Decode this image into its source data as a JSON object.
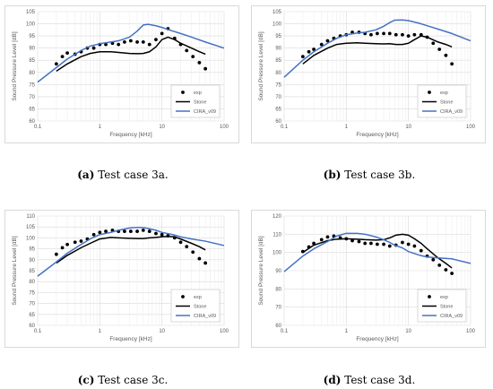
{
  "chart_data": [
    {
      "id": "a",
      "type": "line",
      "caption_label": "(a)",
      "caption_text": "Test case 3a.",
      "xlabel": "Frequency [kHz]",
      "ylabel": "Sound Pressure Level [dB]",
      "xscale": "log",
      "xlim": [
        0.1,
        100
      ],
      "ylim": [
        60,
        105
      ],
      "yticks": [
        60,
        65,
        70,
        75,
        80,
        85,
        90,
        95,
        100,
        105
      ],
      "xticks": [
        0.1,
        1,
        10,
        100
      ],
      "xtick_labels": [
        "0.1",
        "1",
        "10",
        "100"
      ],
      "legend_position": "bottom-right",
      "series": [
        {
          "name": "exp",
          "style": "markers",
          "color": "#000000",
          "x": [
            0.2,
            0.25,
            0.3,
            0.4,
            0.5,
            0.63,
            0.8,
            1.0,
            1.25,
            1.6,
            2.0,
            2.5,
            3.15,
            4.0,
            5.0,
            6.3,
            8.0,
            10.0,
            12.5,
            16.0,
            20.0,
            25.0,
            31.5,
            40.0,
            50.0
          ],
          "y": [
            83.5,
            86.5,
            88,
            87.5,
            88.5,
            90,
            90,
            91.5,
            91.5,
            92,
            91.5,
            92.5,
            93,
            92.5,
            92.5,
            91.5,
            93.5,
            96,
            98,
            94,
            91.5,
            89,
            86.5,
            84,
            81.5
          ]
        },
        {
          "name": "Stone",
          "style": "line",
          "color": "#000000",
          "x": [
            0.2,
            0.3,
            0.5,
            0.7,
            1.0,
            1.5,
            2.0,
            3.0,
            4.0,
            5.0,
            6.3,
            8.0,
            10.0,
            12.5,
            16.0,
            20.0,
            30.0,
            40.0,
            50.0
          ],
          "y": [
            80.5,
            83.5,
            86.5,
            87.8,
            88.5,
            88.5,
            88.2,
            87.8,
            87.7,
            87.8,
            88.5,
            90.5,
            93.5,
            94.5,
            93.5,
            92,
            90,
            88.5,
            87.5
          ]
        },
        {
          "name": "CIRA_v09",
          "style": "line",
          "color": "#4472C4",
          "x": [
            0.1,
            0.2,
            0.3,
            0.5,
            0.7,
            1.0,
            1.5,
            2.0,
            3.0,
            4.0,
            5.0,
            6.0,
            8.0,
            10.0,
            15.0,
            20.0,
            30.0,
            50.0,
            100.0
          ],
          "y": [
            76,
            82,
            85.5,
            89,
            90.8,
            91.8,
            92.5,
            93,
            94.5,
            97,
            99.5,
            99.8,
            99.2,
            98.5,
            97,
            96,
            94.5,
            92.5,
            90
          ]
        }
      ]
    },
    {
      "id": "b",
      "type": "line",
      "caption_label": "(b)",
      "caption_text": "Test case 3b.",
      "xlabel": "Frequency [kHz]",
      "ylabel": "Sound Pressure Level [dB]",
      "xscale": "log",
      "xlim": [
        0.1,
        100
      ],
      "ylim": [
        60,
        105
      ],
      "yticks": [
        60,
        65,
        70,
        75,
        80,
        85,
        90,
        95,
        100,
        105
      ],
      "xticks": [
        0.1,
        1,
        10,
        100
      ],
      "xtick_labels": [
        "0.1",
        "1",
        "10",
        "100"
      ],
      "legend_position": "bottom-right",
      "series": [
        {
          "name": "exp",
          "style": "markers",
          "color": "#000000",
          "x": [
            0.2,
            0.25,
            0.3,
            0.4,
            0.5,
            0.63,
            0.8,
            1.0,
            1.25,
            1.6,
            2.0,
            2.5,
            3.15,
            4.0,
            5.0,
            6.3,
            8.0,
            10.0,
            12.5,
            16.0,
            20.0,
            25.0,
            31.5,
            40.0,
            50.0
          ],
          "y": [
            86.5,
            88.5,
            89.5,
            91.5,
            93,
            94,
            95,
            95.5,
            96.5,
            96.5,
            96,
            95.5,
            96,
            96,
            96,
            95.5,
            95.5,
            95,
            95.5,
            95.5,
            94.5,
            92,
            89.5,
            87,
            83.5
          ]
        },
        {
          "name": "Stone",
          "style": "line",
          "color": "#000000",
          "x": [
            0.2,
            0.3,
            0.5,
            0.7,
            1.0,
            1.5,
            2.0,
            3.0,
            4.0,
            5.0,
            6.3,
            8.0,
            10.0,
            12.5,
            16.0,
            20.0,
            30.0,
            40.0,
            50.0
          ],
          "y": [
            83.5,
            87,
            90,
            91.5,
            92,
            92.2,
            92,
            91.8,
            91.7,
            91.8,
            91.5,
            91.5,
            92,
            93.5,
            95,
            94.5,
            92.5,
            91.5,
            90.5
          ]
        },
        {
          "name": "CIRA_v09",
          "style": "line",
          "color": "#4472C4",
          "x": [
            0.1,
            0.2,
            0.3,
            0.5,
            0.7,
            1.0,
            1.5,
            2.0,
            3.0,
            4.0,
            5.0,
            6.0,
            8.0,
            10.0,
            15.0,
            20.0,
            30.0,
            50.0,
            100.0
          ],
          "y": [
            78,
            85,
            88.5,
            92,
            94,
            95.5,
            96.2,
            96.5,
            97.5,
            99,
            100.5,
            101.5,
            101.6,
            101.3,
            100.2,
            99.2,
            97.8,
            96,
            93
          ]
        }
      ]
    },
    {
      "id": "c",
      "type": "line",
      "caption_label": "(c)",
      "caption_text": "Test case 3c.",
      "xlabel": "Frequency [kHz]",
      "ylabel": "Sound Pressure Level [dB]",
      "xscale": "log",
      "xlim": [
        0.1,
        100
      ],
      "ylim": [
        60,
        110
      ],
      "yticks": [
        60,
        65,
        70,
        75,
        80,
        85,
        90,
        95,
        100,
        105,
        110
      ],
      "xticks": [
        0.1,
        1,
        10,
        100
      ],
      "xtick_labels": [
        "0.1",
        "1",
        "10",
        "100"
      ],
      "legend_position": "bottom-right",
      "series": [
        {
          "name": "exp",
          "style": "markers",
          "color": "#000000",
          "x": [
            0.2,
            0.25,
            0.3,
            0.4,
            0.5,
            0.63,
            0.8,
            1.0,
            1.25,
            1.6,
            2.0,
            2.5,
            3.15,
            4.0,
            5.0,
            6.3,
            8.0,
            10.0,
            12.5,
            16.0,
            20.0,
            25.0,
            31.5,
            40.0,
            50.0
          ],
          "y": [
            92.5,
            95.5,
            97,
            98,
            98.5,
            99.5,
            101.5,
            102.5,
            103,
            103.5,
            103,
            103,
            103,
            103,
            103.5,
            103,
            102,
            101.5,
            101,
            100,
            98,
            96,
            93.5,
            90.5,
            88.5
          ]
        },
        {
          "name": "Stone",
          "style": "line",
          "color": "#000000",
          "x": [
            0.2,
            0.3,
            0.5,
            0.7,
            1.0,
            1.5,
            2.0,
            3.0,
            4.0,
            5.0,
            6.3,
            8.0,
            10.0,
            12.5,
            16.0,
            20.0,
            30.0,
            40.0,
            50.0
          ],
          "y": [
            88.5,
            92,
            95.5,
            97.5,
            99.5,
            100.2,
            100,
            99.8,
            99.7,
            99.7,
            100,
            100.2,
            100.5,
            100.7,
            100.5,
            99.5,
            97.5,
            96,
            94.5
          ]
        },
        {
          "name": "CIRA_v09",
          "style": "line",
          "color": "#4472C4",
          "x": [
            0.1,
            0.2,
            0.3,
            0.5,
            0.7,
            1.0,
            1.5,
            2.0,
            3.0,
            4.0,
            5.0,
            6.0,
            8.0,
            10.0,
            15.0,
            20.0,
            30.0,
            50.0,
            100.0
          ],
          "y": [
            82.5,
            89,
            93,
            97,
            99.5,
            101.5,
            102.5,
            103.5,
            104.5,
            104.8,
            104.7,
            104.3,
            103.5,
            102.5,
            101.5,
            100.5,
            99.5,
            98.5,
            96.5
          ]
        }
      ]
    },
    {
      "id": "d",
      "type": "line",
      "caption_label": "(d)",
      "caption_text": "Test case 3d.",
      "xlabel": "Frequency [kHz]",
      "ylabel": "Sound Pressure Level [dB]",
      "xscale": "log",
      "xlim": [
        0.1,
        100
      ],
      "ylim": [
        60,
        120
      ],
      "yticks": [
        60,
        70,
        80,
        90,
        100,
        110,
        120
      ],
      "xticks": [
        0.1,
        1,
        10,
        100
      ],
      "xtick_labels": [
        "0.1",
        "1",
        "10",
        "100"
      ],
      "legend_position": "bottom-right",
      "series": [
        {
          "name": "exp",
          "style": "markers",
          "color": "#000000",
          "x": [
            0.2,
            0.25,
            0.3,
            0.4,
            0.5,
            0.63,
            0.8,
            1.0,
            1.25,
            1.6,
            2.0,
            2.5,
            3.15,
            4.0,
            5.0,
            6.3,
            8.0,
            10.0,
            12.5,
            16.0,
            20.0,
            25.0,
            31.5,
            40.0,
            50.0
          ],
          "y": [
            100.5,
            103,
            105,
            107,
            108.5,
            109,
            108,
            107.5,
            106.5,
            106,
            105,
            105,
            104.5,
            104.5,
            103.5,
            104,
            105.5,
            104.5,
            103.5,
            101,
            98,
            96,
            93,
            90.5,
            88.5
          ]
        },
        {
          "name": "Stone",
          "style": "line",
          "color": "#000000",
          "x": [
            0.2,
            0.3,
            0.5,
            0.7,
            1.0,
            1.5,
            2.0,
            3.0,
            4.0,
            5.0,
            6.3,
            8.0,
            10.0,
            12.5,
            16.0,
            20.0,
            30.0,
            40.0,
            50.0
          ],
          "y": [
            100,
            104,
            106.5,
            107.3,
            107.5,
            107.3,
            107,
            106.8,
            107,
            108,
            109.5,
            110,
            109.5,
            107.5,
            105,
            102,
            97,
            94,
            91.5
          ]
        },
        {
          "name": "CIRA_v09",
          "style": "line",
          "color": "#4472C4",
          "x": [
            0.1,
            0.2,
            0.3,
            0.5,
            0.7,
            1.0,
            1.5,
            2.0,
            3.0,
            4.0,
            5.0,
            6.0,
            8.0,
            10.0,
            15.0,
            20.0,
            30.0,
            50.0,
            100.0
          ],
          "y": [
            89.5,
            98,
            102,
            106,
            109,
            110.5,
            110.5,
            110,
            108.5,
            107,
            105.5,
            104,
            102.5,
            100.5,
            98.5,
            97.5,
            97,
            96.5,
            94
          ]
        }
      ]
    }
  ]
}
